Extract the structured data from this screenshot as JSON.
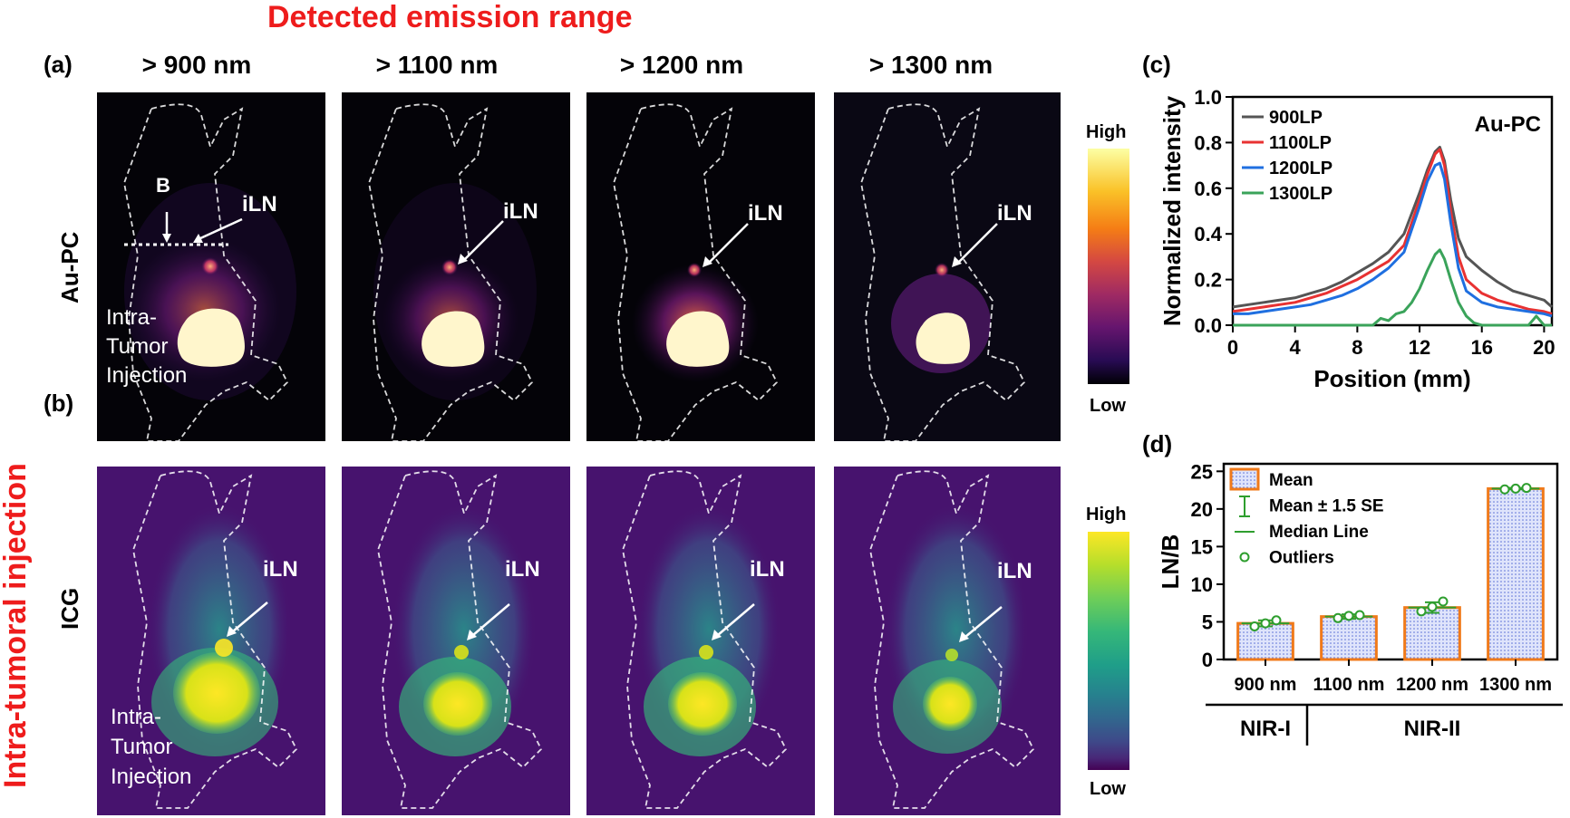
{
  "figure": {
    "top_title": "Detected emission range",
    "side_title": "Intra-tumoral injection",
    "columns": [
      "> 900 nm",
      "> 1100 nm",
      "> 1200 nm",
      "> 1300 nm"
    ],
    "row_labels": {
      "top": "Au-PC",
      "bottom": "ICG"
    },
    "panel_labels": {
      "a": "(a)",
      "b": "(b)",
      "c": "(c)",
      "d": "(d)"
    },
    "annotations": {
      "lymph_node": "iLN",
      "background": "B",
      "injection_line1": "Intra-",
      "injection_line2": "Tumor",
      "injection_line3": "Injection"
    },
    "colorbar": {
      "high": "High",
      "low": "Low"
    },
    "colors": {
      "red_title": "#ee1c1c",
      "au_bg": "#000000",
      "icg_bg": "#47136e"
    }
  },
  "chart_data": [
    {
      "type": "line",
      "title": "Au-PC",
      "xlabel": "Position (mm)",
      "ylabel": "Normalized intensity",
      "xlim": [
        0,
        20.5
      ],
      "ylim": [
        0,
        1.0
      ],
      "xticks": [
        0,
        4,
        8,
        12,
        16,
        20
      ],
      "xtick_labels": [
        "0",
        "4",
        "8",
        "12",
        "16",
        "20"
      ],
      "yticks": [
        0.0,
        0.2,
        0.4,
        0.6,
        0.8,
        1.0
      ],
      "ytick_labels": [
        "0.0",
        "0.2",
        "0.4",
        "0.6",
        "0.8",
        "1.0"
      ],
      "legend_position": "top-left",
      "series": [
        {
          "name": "900LP",
          "color": "#555555",
          "x": [
            0,
            1,
            2,
            3,
            4,
            5,
            6,
            7,
            8,
            9,
            10,
            11,
            12,
            12.5,
            13,
            13.3,
            13.6,
            14,
            14.5,
            15,
            16,
            17,
            18,
            19,
            20,
            20.5
          ],
          "y": [
            0.08,
            0.09,
            0.1,
            0.11,
            0.12,
            0.14,
            0.16,
            0.19,
            0.23,
            0.27,
            0.32,
            0.4,
            0.58,
            0.68,
            0.76,
            0.78,
            0.72,
            0.55,
            0.38,
            0.3,
            0.24,
            0.19,
            0.15,
            0.13,
            0.11,
            0.08
          ]
        },
        {
          "name": "1100LP",
          "color": "#e83232",
          "x": [
            0,
            1,
            2,
            3,
            4,
            5,
            6,
            7,
            8,
            9,
            10,
            11,
            12,
            12.5,
            13,
            13.3,
            13.6,
            14,
            14.5,
            15,
            16,
            17,
            18,
            19,
            20,
            20.5
          ],
          "y": [
            0.06,
            0.07,
            0.08,
            0.09,
            0.1,
            0.12,
            0.14,
            0.17,
            0.2,
            0.24,
            0.28,
            0.35,
            0.55,
            0.66,
            0.75,
            0.77,
            0.7,
            0.5,
            0.3,
            0.2,
            0.14,
            0.11,
            0.09,
            0.07,
            0.06,
            0.05
          ]
        },
        {
          "name": "1200LP",
          "color": "#1f6fe0",
          "x": [
            0,
            1,
            2,
            3,
            4,
            5,
            6,
            7,
            8,
            9,
            10,
            11,
            12,
            12.5,
            13,
            13.3,
            13.6,
            14,
            14.5,
            15,
            16,
            17,
            18,
            19,
            20,
            20.5
          ],
          "y": [
            0.05,
            0.05,
            0.06,
            0.07,
            0.08,
            0.09,
            0.11,
            0.13,
            0.16,
            0.2,
            0.25,
            0.32,
            0.52,
            0.63,
            0.7,
            0.71,
            0.64,
            0.45,
            0.25,
            0.15,
            0.1,
            0.08,
            0.07,
            0.06,
            0.05,
            0.04
          ]
        },
        {
          "name": "1300LP",
          "color": "#3aa35a",
          "x": [
            0,
            1,
            2,
            3,
            4,
            5,
            6,
            7,
            8,
            9,
            9.5,
            10,
            10.5,
            11,
            11.5,
            12,
            12.5,
            13,
            13.3,
            13.6,
            14,
            14.5,
            15,
            15.5,
            16,
            17,
            18,
            19,
            19.5,
            20,
            20.5
          ],
          "y": [
            0.0,
            0.0,
            0.0,
            0.0,
            0.0,
            0.0,
            0.0,
            0.0,
            0.0,
            0.0,
            0.03,
            0.02,
            0.05,
            0.06,
            0.1,
            0.16,
            0.24,
            0.31,
            0.33,
            0.29,
            0.2,
            0.1,
            0.04,
            0.01,
            0.0,
            0.0,
            0.0,
            0.0,
            0.04,
            0.0,
            0.0
          ]
        }
      ]
    },
    {
      "type": "bar",
      "ylabel": "LN/B",
      "ylim": [
        0,
        26
      ],
      "yticks": [
        0,
        5,
        10,
        15,
        20,
        25
      ],
      "ytick_labels": [
        "0",
        "5",
        "10",
        "15",
        "20",
        "25"
      ],
      "categories": [
        "900 nm",
        "1100 nm",
        "1200 nm",
        "1300 nm"
      ],
      "values": [
        4.8,
        5.7,
        6.9,
        22.7
      ],
      "errors": [
        0.4,
        0.3,
        0.7,
        0.1
      ],
      "points": [
        [
          4.4,
          4.8,
          5.2
        ],
        [
          5.5,
          5.8,
          5.9
        ],
        [
          6.4,
          7.0,
          7.7
        ],
        [
          22.6,
          22.7,
          22.8
        ]
      ],
      "groups": [
        {
          "label": "NIR-I",
          "span": 1
        },
        {
          "label": "NIR-II",
          "span": 3
        }
      ],
      "legend": [
        "Mean",
        "Mean ± 1.5 SE",
        "Median Line",
        "Outliers"
      ],
      "bar_edge_color": "#f07a1a",
      "bar_fill_color": "#dfe4fb",
      "point_color": "#2e9e2e"
    }
  ]
}
